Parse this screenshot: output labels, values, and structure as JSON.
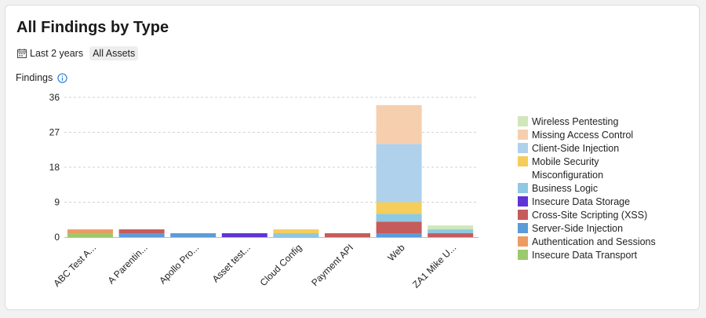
{
  "title": "All Findings by Type",
  "filters": {
    "date_range": "Last 2 years",
    "assets": "All Assets"
  },
  "icons": {
    "calendar": "calendar-icon",
    "info": "info-icon"
  },
  "colors": {
    "Wireless Pentesting": "#cfe7b9",
    "Missing Access Control": "#f5cfae",
    "Client-Side Injection": "#afd1ec",
    "Mobile Security": "#f4cd5a",
    "Misconfiguration": "#ffffff",
    "Business Logic": "#8ec8e2",
    "Insecure Data Storage": "#5f33d6",
    "Cross-Site Scripting (XSS)": "#c65b5b",
    "Server-Side Injection": "#5b9bd8",
    "Authentication and Sessions": "#ec9c62",
    "Insecure Data Transport": "#9cc96b"
  },
  "chart_data": {
    "type": "bar",
    "stacked": true,
    "ylabel": "Findings",
    "ylim": [
      0,
      36
    ],
    "yticks": [
      0,
      9,
      18,
      27,
      36
    ],
    "grid": true,
    "legend_position": "right",
    "categories": [
      "ABC Test A...",
      "A Parentin...",
      "Apollo Pro...",
      "Asset test...",
      "Cloud Config",
      "Payment API",
      "Web",
      "ZA1 Mike U..."
    ],
    "series": [
      {
        "name": "Insecure Data Transport",
        "values": [
          1,
          0,
          0,
          0,
          0,
          0,
          0,
          0
        ]
      },
      {
        "name": "Authentication and Sessions",
        "values": [
          1,
          0,
          0,
          0,
          0,
          0,
          0,
          0
        ]
      },
      {
        "name": "Server-Side Injection",
        "values": [
          0,
          1,
          1,
          0,
          0,
          0,
          1,
          0
        ]
      },
      {
        "name": "Cross-Site Scripting (XSS)",
        "values": [
          0,
          1,
          0,
          0,
          0,
          1,
          3,
          1
        ]
      },
      {
        "name": "Insecure Data Storage",
        "values": [
          0,
          0,
          0,
          1,
          0,
          0,
          0,
          0
        ]
      },
      {
        "name": "Business Logic",
        "values": [
          0,
          0,
          0,
          0,
          1,
          0,
          2,
          1
        ]
      },
      {
        "name": "Misconfiguration",
        "values": [
          0,
          0,
          0,
          0,
          0,
          0,
          0,
          0
        ]
      },
      {
        "name": "Mobile Security",
        "values": [
          0,
          0,
          0,
          0,
          1,
          0,
          3,
          0
        ]
      },
      {
        "name": "Client-Side Injection",
        "values": [
          0,
          0,
          0,
          0,
          0,
          0,
          15,
          0
        ]
      },
      {
        "name": "Missing Access Control",
        "values": [
          0,
          0,
          0,
          0,
          0,
          0,
          10,
          0
        ]
      },
      {
        "name": "Wireless Pentesting",
        "values": [
          0,
          0,
          0,
          0,
          0,
          0,
          0,
          1
        ]
      }
    ],
    "legend_order": [
      "Wireless Pentesting",
      "Missing Access Control",
      "Client-Side Injection",
      "Mobile Security",
      "Misconfiguration",
      "Business Logic",
      "Insecure Data Storage",
      "Cross-Site Scripting (XSS)",
      "Server-Side Injection",
      "Authentication and Sessions",
      "Insecure Data Transport"
    ]
  }
}
